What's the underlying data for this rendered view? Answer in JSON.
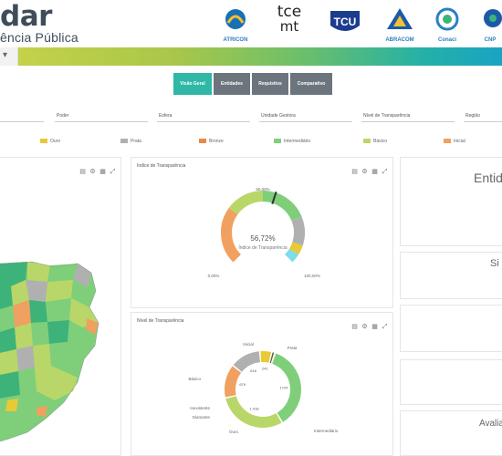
{
  "header": {
    "title": "dar",
    "subtitle": "ência Pública",
    "logos": [
      {
        "name": "atricon-logo",
        "caption": "ATRICON",
        "color": "#1b6fb5"
      },
      {
        "name": "tce-mt-logo",
        "caption": "",
        "text_top": "tce",
        "text_bottom": "mt",
        "color": "#222222"
      },
      {
        "name": "tcu-logo",
        "caption": "",
        "text": "TCU",
        "color": "#1c3c8e"
      },
      {
        "name": "abracom-logo",
        "caption": "ABRACOM",
        "color": "#1c5aa8"
      },
      {
        "name": "conaci-logo",
        "caption": "Conaci",
        "color": "#2a7fc7"
      },
      {
        "name": "cnp-logo",
        "caption": "CNP",
        "color": "#1c5aa8"
      }
    ]
  },
  "tabs": [
    {
      "label": "Visão Geral",
      "active": true
    },
    {
      "label": "Entidades",
      "active": false
    },
    {
      "label": "Requisitos",
      "active": false
    },
    {
      "label": "Comparativo",
      "active": false
    }
  ],
  "filters": [
    {
      "label": ""
    },
    {
      "label": "Poder"
    },
    {
      "label": "Esfera"
    },
    {
      "label": "Unidade Gestora"
    },
    {
      "label": "Nível de Transparência"
    },
    {
      "label": "Região"
    }
  ],
  "legend": [
    {
      "label": "Ouro",
      "color": "#e8c936"
    },
    {
      "label": "Prata",
      "color": "#b0b0b0"
    },
    {
      "label": "Bronze",
      "color": "#e88a45"
    },
    {
      "label": "Intermediário",
      "color": "#7fcf7a"
    },
    {
      "label": "Básico",
      "color": "#b9d769"
    },
    {
      "label": "Inicial",
      "color": "#f0a060"
    }
  ],
  "cards": {
    "map": {
      "title": ""
    },
    "gauge": {
      "title": "Índice de Transparência",
      "value": "56,72%",
      "value_label": "Índice de Transparência",
      "tick_top": "50,00%",
      "tick_right": "100,00%",
      "tick_left": "0,00%"
    },
    "donut": {
      "title": "Nível de Transparência"
    },
    "side": {
      "title": "Entid",
      "label2": "Si",
      "label3": "Avalia"
    }
  },
  "chart_data": {
    "type": "pie",
    "title": "Nível de Transparência",
    "categories": [
      "Intermediário",
      "Básico",
      "Inicial",
      "Prata",
      "Ouro",
      "Inexistente",
      "Diamante"
    ],
    "series": [
      {
        "values": [
          1724,
          1418,
          679,
          616,
          241,
          58,
          12
        ]
      }
    ],
    "slice_labels": [
      "1724",
      "1.418",
      "679",
      "616",
      "241",
      "",
      ""
    ],
    "colors": [
      "#7fcf7a",
      "#b9d769",
      "#f0a060",
      "#b0b0b0",
      "#e8c936",
      "#555555",
      "#f4f0c0"
    ],
    "outer_labels": [
      "Intermediário",
      "Básico",
      "Inicial",
      "Prata",
      "Ouro",
      "Inexistente",
      "Diamante"
    ]
  },
  "gauge_data": {
    "value_percent": 56.72,
    "min": 0,
    "max": 100,
    "bands": [
      {
        "to": 30,
        "color": "#f0a060"
      },
      {
        "to": 50,
        "color": "#b9d769"
      },
      {
        "to": 75,
        "color": "#7fcf7a"
      },
      {
        "to": 90,
        "color": "#b0b0b0"
      },
      {
        "to": 95,
        "color": "#e8c936"
      },
      {
        "to": 100,
        "color": "#7fdce8"
      }
    ]
  },
  "icons": [
    "download-icon",
    "settings-icon",
    "table-icon",
    "expand-icon"
  ]
}
